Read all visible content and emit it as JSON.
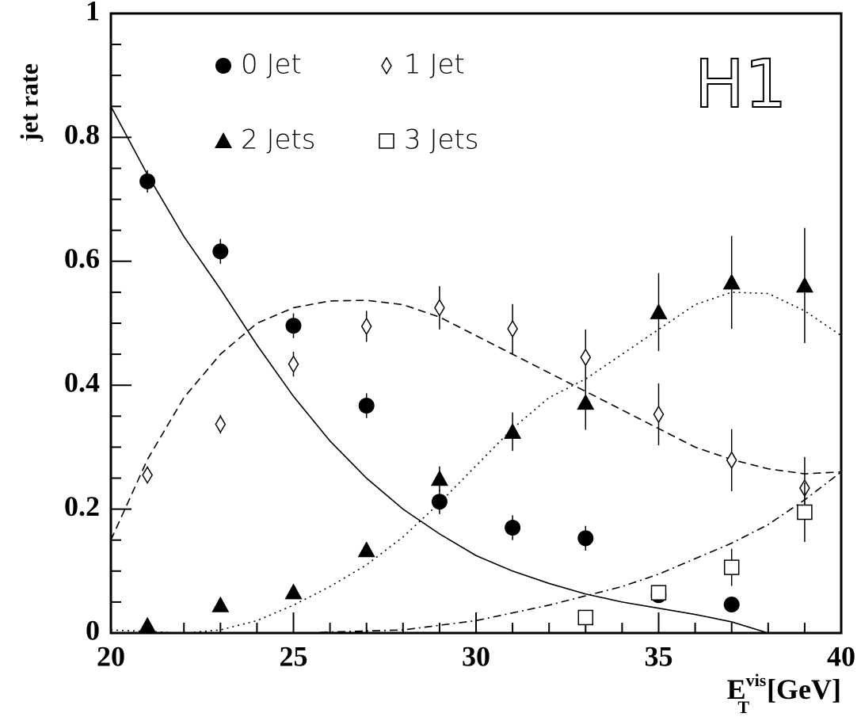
{
  "chart_data": {
    "type": "scatter",
    "y_label": "jet rate",
    "x_label": {
      "base": "E",
      "sub": "T",
      "sup": "vis",
      "unit": "[GeV]"
    },
    "annotation": "H1",
    "xlim": [
      20,
      40
    ],
    "ylim": [
      0,
      1
    ],
    "xticks": [
      20,
      25,
      30,
      35,
      40
    ],
    "yticks": [
      0,
      0.2,
      0.4,
      0.6,
      0.8,
      1
    ],
    "xminorticks": [
      21,
      22,
      23,
      24,
      26,
      27,
      28,
      29,
      31,
      32,
      33,
      34,
      36,
      37,
      38,
      39
    ],
    "yminorticks": [
      0.05,
      0.1,
      0.15,
      0.25,
      0.3,
      0.35,
      0.45,
      0.5,
      0.55,
      0.65,
      0.7,
      0.75,
      0.85,
      0.9,
      0.95
    ],
    "series": [
      {
        "name": "0 Jet",
        "marker": "circle",
        "color": "#000000",
        "x": [
          21,
          23,
          25,
          27,
          29,
          31,
          33,
          35,
          37
        ],
        "values": [
          0.729,
          0.616,
          0.496,
          0.367,
          0.212,
          0.17,
          0.153,
          0.061,
          0.046
        ],
        "errors": [
          0.018,
          0.02,
          0.02,
          0.02,
          0.02,
          0.02,
          0.02,
          0.012,
          0.012
        ]
      },
      {
        "name": "2 Jets",
        "marker": "triangle",
        "color": "#000000",
        "x": [
          21,
          23,
          25,
          27,
          29,
          31,
          33,
          35,
          37,
          39
        ],
        "values": [
          0.012,
          0.045,
          0.066,
          0.134,
          0.249,
          0.325,
          0.372,
          0.518,
          0.566,
          0.561
        ],
        "errors": [
          0.005,
          0.006,
          0.008,
          0.01,
          0.02,
          0.031,
          0.044,
          0.063,
          0.075,
          0.093
        ]
      },
      {
        "name": "1 Jet",
        "marker": "diamond",
        "color": "#000000",
        "x": [
          21,
          23,
          25,
          27,
          29,
          31,
          33,
          35,
          37,
          39
        ],
        "values": [
          0.255,
          0.337,
          0.434,
          0.495,
          0.525,
          0.491,
          0.445,
          0.353,
          0.279,
          0.234
        ],
        "errors": [
          0.012,
          0.015,
          0.02,
          0.025,
          0.035,
          0.04,
          0.045,
          0.05,
          0.05,
          0.05
        ]
      },
      {
        "name": "3 Jets",
        "marker": "square",
        "color": "#000000",
        "x": [
          33,
          35,
          37,
          39
        ],
        "values": [
          0.025,
          0.065,
          0.106,
          0.195
        ],
        "errors": [
          0.008,
          0.012,
          0.03,
          0.048
        ]
      }
    ],
    "curves": [
      {
        "style": "solid",
        "x": [
          20,
          21,
          22,
          23,
          24,
          25,
          26,
          27,
          28,
          29,
          30,
          31,
          32,
          33,
          34,
          35,
          36,
          37,
          38
        ],
        "values": [
          0.85,
          0.74,
          0.64,
          0.555,
          0.465,
          0.382,
          0.31,
          0.25,
          0.2,
          0.16,
          0.125,
          0.1,
          0.08,
          0.063,
          0.05,
          0.04,
          0.03,
          0.018,
          0
        ]
      },
      {
        "style": "dashed",
        "x": [
          20,
          21,
          22,
          23,
          24,
          25,
          26,
          27,
          28,
          29,
          30,
          31,
          32,
          33,
          34,
          35,
          36,
          37,
          38,
          39,
          40
        ],
        "values": [
          0.15,
          0.28,
          0.38,
          0.45,
          0.5,
          0.525,
          0.536,
          0.537,
          0.53,
          0.51,
          0.48,
          0.45,
          0.42,
          0.39,
          0.36,
          0.33,
          0.3,
          0.28,
          0.265,
          0.257,
          0.26
        ]
      },
      {
        "style": "dotted",
        "x": [
          20,
          22,
          23,
          24,
          25,
          26,
          27,
          28,
          29,
          30,
          31,
          32,
          33,
          34,
          35,
          36,
          37,
          38,
          39,
          40
        ],
        "values": [
          0.005,
          0,
          0.005,
          0.02,
          0.045,
          0.075,
          0.11,
          0.155,
          0.21,
          0.27,
          0.33,
          0.38,
          0.41,
          0.45,
          0.49,
          0.53,
          0.55,
          0.548,
          0.52,
          0.48
        ]
      },
      {
        "style": "dashdot",
        "x": [
          20,
          25,
          28,
          30,
          32,
          33,
          34,
          35,
          36,
          37,
          38,
          39,
          40
        ],
        "values": [
          0,
          0,
          0.005,
          0.02,
          0.045,
          0.06,
          0.075,
          0.095,
          0.12,
          0.145,
          0.175,
          0.215,
          0.26
        ]
      }
    ]
  }
}
